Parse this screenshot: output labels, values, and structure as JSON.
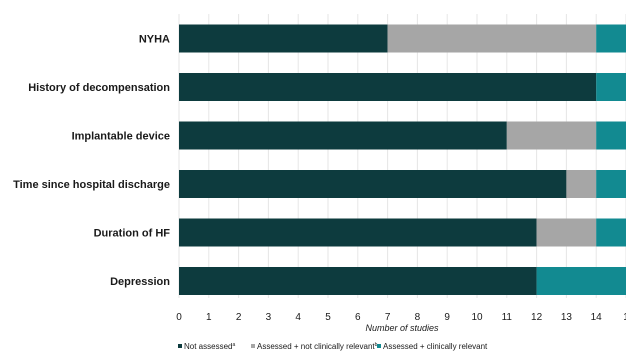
{
  "chart_data": {
    "type": "bar",
    "orientation": "horizontal",
    "stacked": true,
    "categories": [
      "NYHA",
      "History of decompensation",
      "Implantable device",
      "Time since hospital discharge",
      "Duration of HF",
      "Depression"
    ],
    "series": [
      {
        "name": "Not assessed",
        "name_sup": "a",
        "color": "#0d3b3e",
        "values": [
          7,
          14,
          11,
          13,
          12,
          12
        ]
      },
      {
        "name": "Assessed + not clinically relevant",
        "name_sup": "b",
        "color": "#a6a6a6",
        "values": [
          7,
          0,
          3,
          1,
          2,
          0
        ]
      },
      {
        "name": "Assessed + clinically relevant",
        "name_sup": "",
        "color": "#128a91",
        "values": [
          1,
          1,
          1,
          1,
          1,
          3
        ]
      }
    ],
    "xlabel": "Number of studies",
    "xlim": [
      0,
      15
    ],
    "xticks": [
      "0",
      "1",
      "2",
      "3",
      "4",
      "5",
      "6",
      "7",
      "8",
      "9",
      "10",
      "11",
      "12",
      "13",
      "14",
      "1"
    ],
    "grid": "vertical",
    "legend_position": "bottom"
  }
}
